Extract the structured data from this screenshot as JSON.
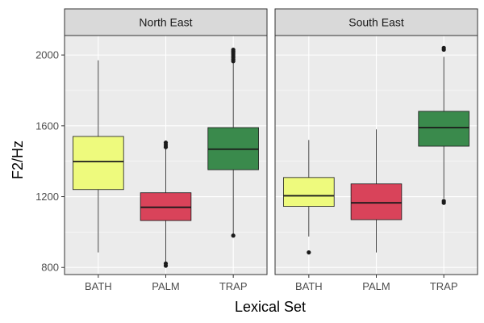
{
  "chart_data": {
    "type": "boxplot",
    "xlabel": "Lexical Set",
    "ylabel": "F2/Hz",
    "ylim": [
      760,
      2110
    ],
    "yticks": [
      800,
      1200,
      1600,
      2000
    ],
    "ytick_labels": [
      "800",
      "1200",
      "1600",
      "2000"
    ],
    "grid": true,
    "categories": [
      "BATH",
      "PALM",
      "TRAP"
    ],
    "colors": {
      "BATH": "#eefa7d",
      "PALM": "#d9435a",
      "TRAP": "#3a8a4c",
      "panel_bg": "#ebebeb",
      "strip_bg": "#d9d9d9",
      "grid": "#ffffff"
    },
    "panels": [
      {
        "name": "North East",
        "boxes": [
          {
            "category": "BATH",
            "whisker_low": 885,
            "q1": 1240,
            "median": 1398,
            "q3": 1540,
            "whisker_high": 1970,
            "outliers": []
          },
          {
            "category": "PALM",
            "whisker_low": 830,
            "q1": 1065,
            "median": 1140,
            "q3": 1222,
            "whisker_high": 1470,
            "outliers": [
              810,
              822,
              1480,
              1492,
              1505
            ]
          },
          {
            "category": "TRAP",
            "whisker_low": 985,
            "q1": 1352,
            "median": 1468,
            "q3": 1590,
            "whisker_high": 1955,
            "outliers": [
              980,
              1965,
              1975,
              1985,
              1995,
              2005,
              2015,
              2022,
              2030
            ]
          }
        ]
      },
      {
        "name": "South East",
        "boxes": [
          {
            "category": "BATH",
            "whisker_low": 975,
            "q1": 1145,
            "median": 1205,
            "q3": 1308,
            "whisker_high": 1520,
            "outliers": [
              885
            ]
          },
          {
            "category": "PALM",
            "whisker_low": 885,
            "q1": 1070,
            "median": 1165,
            "q3": 1272,
            "whisker_high": 1580,
            "outliers": []
          },
          {
            "category": "TRAP",
            "whisker_low": 1190,
            "q1": 1485,
            "median": 1590,
            "q3": 1682,
            "whisker_high": 1990,
            "outliers": [
              1165,
              1175,
              2030,
              2040
            ]
          }
        ]
      }
    ]
  }
}
